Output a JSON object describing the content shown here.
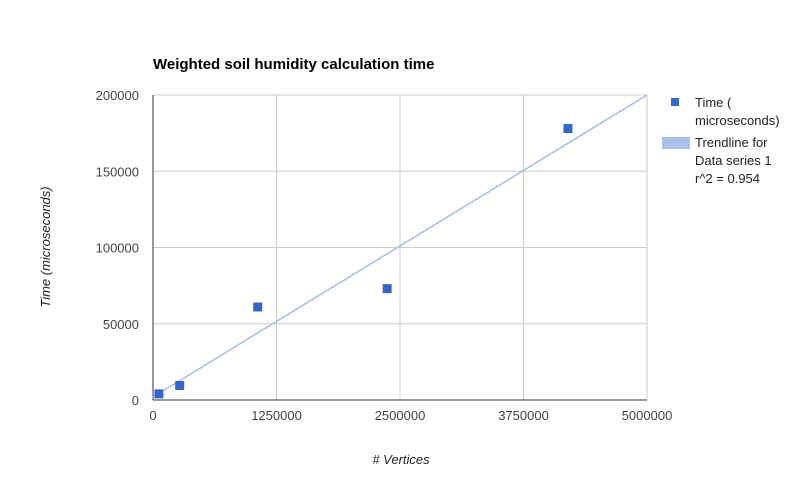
{
  "chart_data": {
    "type": "scatter",
    "title": "Weighted soil humidity calculation time",
    "xlabel": "# Vertices",
    "ylabel": "Time (microseconds)",
    "xlim": [
      0,
      5000000
    ],
    "ylim": [
      0,
      200000
    ],
    "x_ticks": [
      "0",
      "1250000",
      "2500000",
      "3750000",
      "5000000"
    ],
    "y_ticks": [
      "0",
      "50000",
      "100000",
      "150000",
      "200000"
    ],
    "grid": true,
    "legend_position": "right",
    "series": [
      {
        "name": "Time ( microseconds)",
        "legend_lines": [
          "Time (",
          "microseconds)"
        ],
        "color": "#3366cc",
        "marker": "square",
        "points": [
          {
            "x": 60000,
            "y": 4000
          },
          {
            "x": 270000,
            "y": 9500
          },
          {
            "x": 1060000,
            "y": 61000
          },
          {
            "x": 2370000,
            "y": 73000
          },
          {
            "x": 4200000,
            "y": 178000
          }
        ]
      }
    ],
    "trendline": {
      "name": "Trendline for Data series 1 r^2 = 0.954",
      "legend_lines": [
        "Trendline for",
        "Data series 1",
        "r^2 = 0.954"
      ],
      "color": "#a9c1ec",
      "type": "linear",
      "start": {
        "x": 0,
        "y": 2000
      },
      "end": {
        "x": 5000000,
        "y": 200000
      }
    }
  }
}
